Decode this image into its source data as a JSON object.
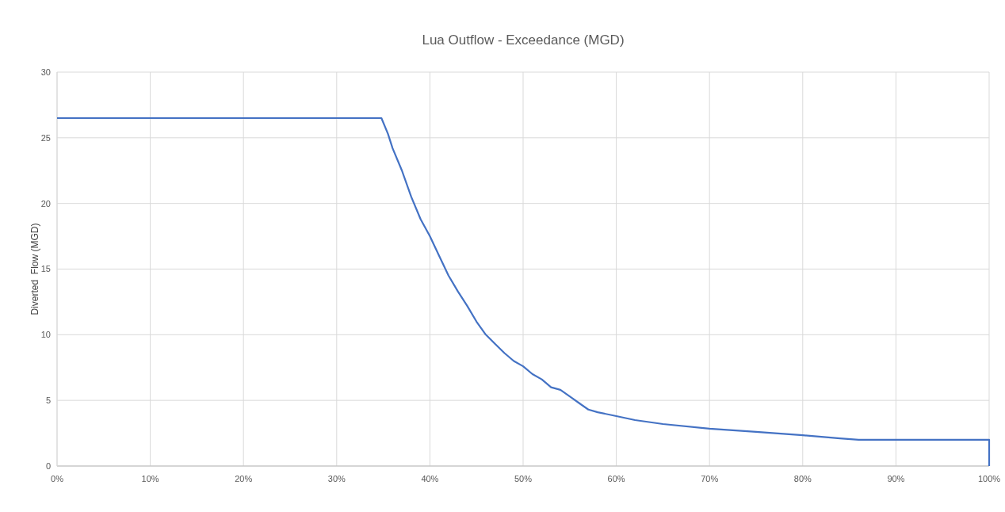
{
  "chart_data": {
    "type": "line",
    "title": "Lua Outflow - Exceedance (MGD)",
    "ylabel": "Diverted  Flow (MGD)",
    "x": [
      0,
      34.8,
      35.5,
      36,
      37,
      38,
      39,
      40,
      41,
      42,
      43,
      44,
      45,
      46,
      47,
      48,
      49,
      50,
      51,
      52,
      53,
      54,
      55,
      56,
      57,
      58,
      60,
      62,
      65,
      70,
      75,
      80,
      84,
      86,
      100,
      100
    ],
    "series": [
      {
        "color": "#4472c4",
        "values": [
          26.5,
          26.5,
          25.3,
          24.2,
          22.5,
          20.5,
          18.8,
          17.5,
          16,
          14.5,
          13.3,
          12.2,
          11,
          10,
          9.3,
          8.6,
          8,
          7.6,
          7,
          6.6,
          6,
          5.8,
          5.3,
          4.8,
          4.3,
          4.1,
          3.8,
          3.5,
          3.2,
          2.85,
          2.6,
          2.35,
          2.1,
          2,
          2,
          0
        ]
      }
    ],
    "xlim": [
      0,
      100
    ],
    "xticks": [
      {
        "value": 0,
        "label": "0%"
      },
      {
        "value": 10,
        "label": "10%"
      },
      {
        "value": 20,
        "label": "20%"
      },
      {
        "value": 30,
        "label": "30%"
      },
      {
        "value": 40,
        "label": "40%"
      },
      {
        "value": 50,
        "label": "50%"
      },
      {
        "value": 60,
        "label": "60%"
      },
      {
        "value": 70,
        "label": "70%"
      },
      {
        "value": 80,
        "label": "80%"
      },
      {
        "value": 90,
        "label": "90%"
      },
      {
        "value": 100,
        "label": "100%"
      }
    ],
    "ylim": [
      0,
      30
    ],
    "yticks": [
      0,
      5,
      10,
      15,
      20,
      25,
      30
    ],
    "grid": true,
    "marker": "none",
    "line_style": "solid"
  }
}
